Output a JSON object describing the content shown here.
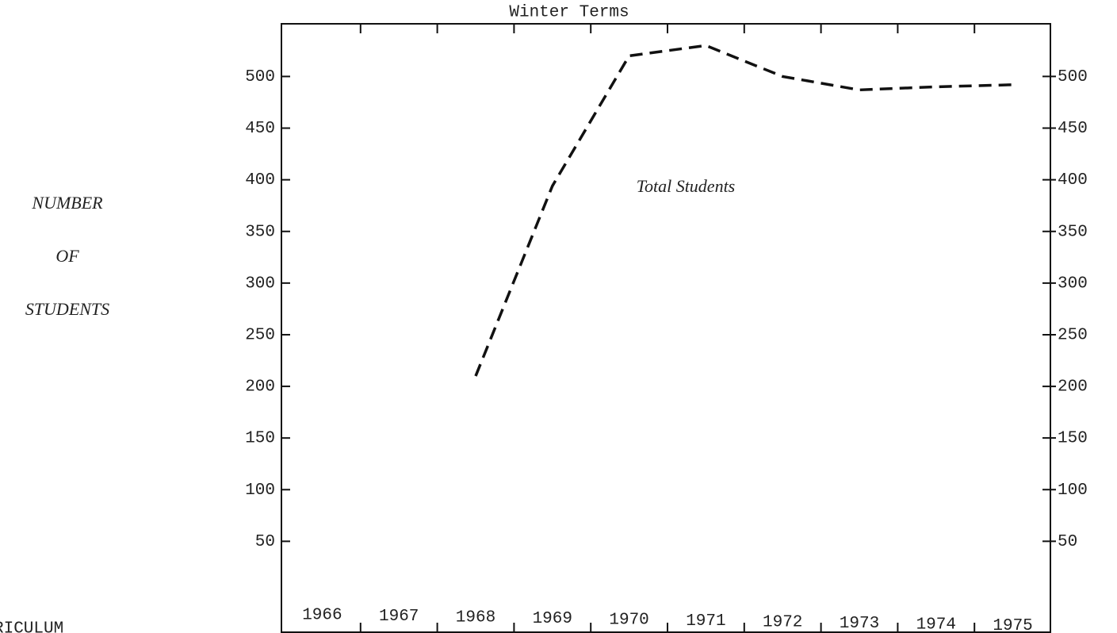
{
  "chart_data": {
    "type": "line",
    "title": "Winter Terms",
    "y_label_lines": [
      "NUMBER",
      "OF",
      "STUDENTS"
    ],
    "annotations": [
      "Total Students"
    ],
    "corner_text": "RICULUM",
    "categories": [
      "1966",
      "1967",
      "1968",
      "1969",
      "1970",
      "1971",
      "1972",
      "1973",
      "1974",
      "1975"
    ],
    "series": [
      {
        "name": "Total Students",
        "color": "#111111",
        "values": [
          null,
          null,
          210,
          394,
          520,
          530,
          500,
          487,
          490,
          492
        ]
      }
    ],
    "ylim": [
      -38,
      551
    ],
    "yticks": [
      50,
      100,
      150,
      200,
      250,
      300,
      350,
      400,
      450,
      500
    ],
    "y2lim": [
      -38,
      551
    ],
    "y2ticks": [
      50,
      100,
      150,
      200,
      250,
      300,
      350,
      400,
      450,
      500
    ],
    "dashed": true
  }
}
